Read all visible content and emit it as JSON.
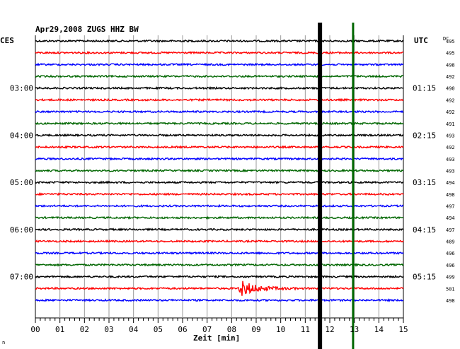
{
  "chart_data": {
    "type": "line",
    "title": "Apr29,2008   ZUGS HHZ BW",
    "left_zone": "CES",
    "right_zone": "UTC",
    "dc_header": "DC",
    "xlabel": "Zeit [min]",
    "xlim": [
      0,
      15
    ],
    "x_ticks": [
      "00",
      "01",
      "02",
      "03",
      "04",
      "05",
      "06",
      "07",
      "08",
      "09",
      "10",
      "11",
      "12",
      "13",
      "14",
      "15"
    ],
    "trace_colors": [
      "#000000",
      "#ff0000",
      "#0000ff",
      "#006600"
    ],
    "left_hour_labels": [
      "03:00",
      "04:00",
      "05:00",
      "06:00",
      "07:00"
    ],
    "right_hour_labels": [
      "01:15",
      "02:15",
      "03:15",
      "04:15",
      "05:15"
    ],
    "dc_values": [
      "495",
      "495",
      "498",
      "492",
      "490",
      "492",
      "492",
      "491",
      "493",
      "492",
      "493",
      "493",
      "494",
      "498",
      "497",
      "494",
      "497",
      "489",
      "496",
      "496",
      "499",
      "501",
      "498"
    ],
    "markers": [
      {
        "minute": 11.6,
        "color": "#000000"
      },
      {
        "minute": 12.95,
        "color": "#006600"
      }
    ],
    "events": [
      {
        "trace": 21,
        "start_minute": 8.3,
        "duration_min": 2.5,
        "peak_amplitude": 2.6
      }
    ],
    "footer_mark": "n"
  }
}
